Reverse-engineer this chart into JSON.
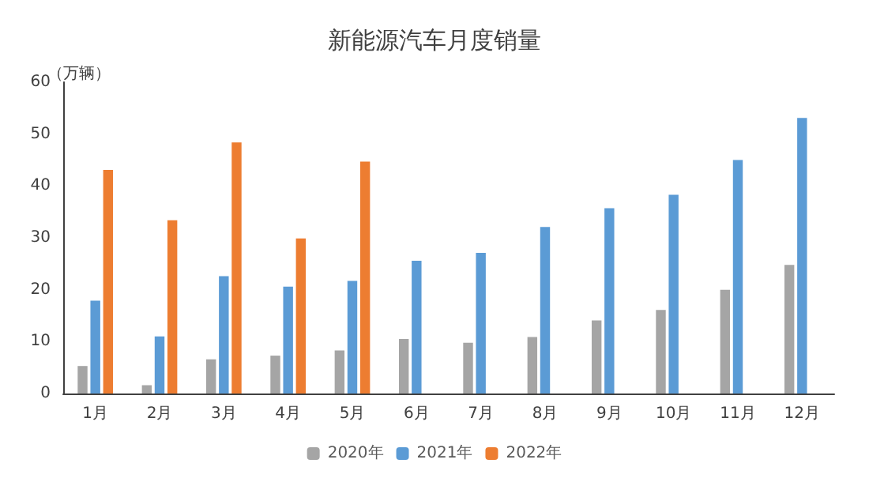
{
  "chart_data": {
    "type": "bar",
    "title": "新能源汽车月度销量",
    "ylabel": "（万辆）",
    "categories": [
      "1月",
      "2月",
      "3月",
      "4月",
      "5月",
      "6月",
      "7月",
      "8月",
      "9月",
      "10月",
      "11月",
      "12月"
    ],
    "series": [
      {
        "name": "2020年",
        "color": "#a5a5a5",
        "values": [
          5.3,
          1.6,
          6.6,
          7.3,
          8.3,
          10.5,
          9.8,
          10.9,
          14.1,
          16.1,
          20.0,
          24.8
        ]
      },
      {
        "name": "2021年",
        "color": "#5b9bd5",
        "values": [
          17.9,
          11.0,
          22.6,
          20.6,
          21.7,
          25.6,
          27.1,
          32.1,
          35.7,
          38.3,
          45.0,
          53.1
        ]
      },
      {
        "name": "2022年",
        "color": "#ed7d31",
        "values": [
          43.1,
          33.4,
          48.4,
          29.9,
          44.7,
          null,
          null,
          null,
          null,
          null,
          null,
          null
        ]
      }
    ],
    "ylim": [
      0,
      60
    ],
    "yticks": [
      0,
      10,
      20,
      30,
      40,
      50,
      60
    ],
    "grid": false,
    "legend": "bottom"
  }
}
